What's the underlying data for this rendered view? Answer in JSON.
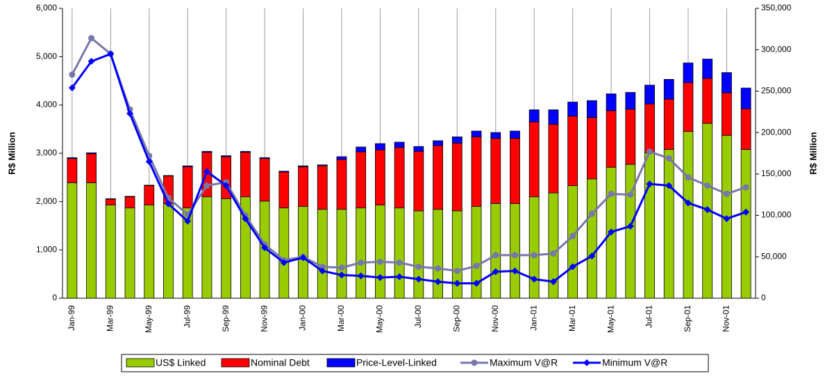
{
  "chart_data": {
    "type": "bar-line",
    "y_label": "R$ Million",
    "y2_label": "R$ Million",
    "categories": [
      "Jan-99",
      null,
      "Mar-99",
      null,
      "May-99",
      null,
      "Jul-99",
      null,
      "Sep-99",
      null,
      "Nov-99",
      null,
      "Jan-00",
      null,
      "Mar-00",
      null,
      "May-00",
      null,
      "Jul-00",
      null,
      "Sep-00",
      null,
      "Nov-00",
      null,
      "Jan-01",
      null,
      "Mar-01",
      null,
      "May-01",
      null,
      "Jul-01",
      null,
      "Sep-01",
      null,
      "Nov-01",
      null
    ],
    "series": [
      {
        "name": "US$ Linked",
        "color": "#99cc00",
        "kind": "bar",
        "values": [
          2390,
          2390,
          1930,
          1870,
          1930,
          1960,
          1870,
          2100,
          2060,
          2100,
          2010,
          1870,
          1900,
          1840,
          1840,
          1870,
          1930,
          1870,
          1810,
          1840,
          1810,
          1900,
          1960,
          1960,
          2100,
          2180,
          2330,
          2470,
          2710,
          2770,
          3010,
          3080,
          3450,
          3620,
          3370,
          3080
        ]
      },
      {
        "name": "Nominal Debt",
        "color": "#ff0000",
        "kind": "bar",
        "values": [
          500,
          600,
          120,
          230,
          400,
          570,
          850,
          920,
          870,
          920,
          880,
          740,
          820,
          900,
          1030,
          1160,
          1140,
          1250,
          1230,
          1320,
          1400,
          1440,
          1350,
          1350,
          1550,
          1420,
          1440,
          1270,
          1170,
          1140,
          1010,
          1040,
          1010,
          930,
          880,
          840
        ]
      },
      {
        "name": "Price-Level-Linked",
        "color": "#0000ff",
        "kind": "bar",
        "values": [
          20,
          20,
          10,
          10,
          10,
          10,
          20,
          20,
          20,
          20,
          20,
          20,
          20,
          20,
          60,
          100,
          130,
          110,
          100,
          100,
          130,
          120,
          120,
          150,
          250,
          300,
          290,
          350,
          350,
          350,
          390,
          410,
          410,
          400,
          420,
          430
        ]
      },
      {
        "name": "Maximum V@R",
        "color": "#7777aa",
        "kind": "line",
        "axis": "y2",
        "marker": "circle",
        "values": [
          270000,
          314000,
          295000,
          228000,
          172000,
          121000,
          101000,
          136000,
          140000,
          100000,
          65000,
          46000,
          50000,
          38000,
          37000,
          43000,
          44000,
          43000,
          38000,
          36000,
          33000,
          39000,
          52000,
          52000,
          52000,
          54000,
          75000,
          102000,
          126000,
          125000,
          177000,
          169000,
          146000,
          136000,
          126000,
          134000
        ]
      },
      {
        "name": "Minimum V@R",
        "color": "#0000ff",
        "kind": "line",
        "axis": "y2",
        "marker": "diamond",
        "values": [
          254000,
          286000,
          295000,
          223000,
          165000,
          114000,
          93000,
          153000,
          136000,
          96000,
          61000,
          43000,
          49000,
          33000,
          28000,
          27000,
          25000,
          26000,
          23000,
          20000,
          18000,
          18000,
          32000,
          33000,
          23000,
          20000,
          38000,
          51000,
          80000,
          87000,
          138000,
          136000,
          115000,
          107000,
          96000,
          104000
        ]
      }
    ],
    "ylim": [
      0,
      6000
    ],
    "yticks": [
      0,
      {
        "value": 1000,
        "label": "1,000"
      },
      {
        "value": 2000,
        "label": "2,000"
      },
      {
        "value": 3000,
        "label": "3,000"
      },
      {
        "value": 4000,
        "label": "4,000"
      },
      {
        "value": 5000,
        "label": "5,000"
      },
      {
        "value": 6000,
        "label": "6,000"
      }
    ],
    "y2lim": [
      0,
      350000
    ],
    "y2ticks": [
      0,
      {
        "value": 50000,
        "label": "50,000"
      },
      {
        "value": 100000,
        "label": "100,000"
      },
      {
        "value": 150000,
        "label": "150,000"
      },
      {
        "value": 200000,
        "label": "200,000"
      },
      {
        "value": 250000,
        "label": "250,000"
      },
      {
        "value": 300000,
        "label": "300,000"
      },
      {
        "value": 350000,
        "label": "350,000"
      }
    ],
    "grid": "x",
    "legend": "bottom"
  }
}
